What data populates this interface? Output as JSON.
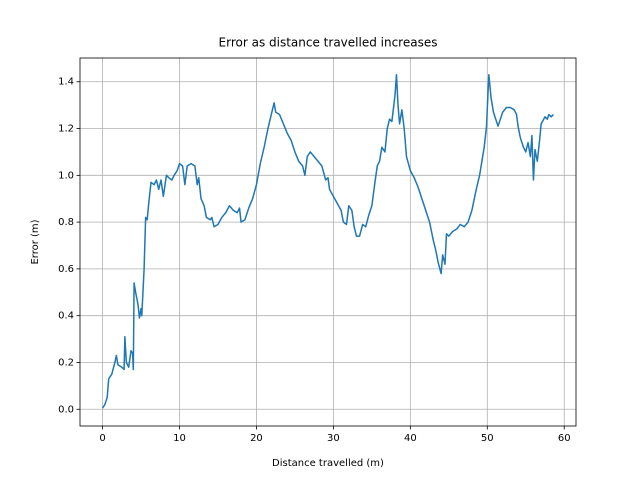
{
  "chart_data": {
    "type": "line",
    "title": "Error as distance travelled increases",
    "x_label": "Distance travelled (m)",
    "y_label": "Error (m)",
    "x": [
      0,
      0.3,
      0.6,
      0.8,
      1.2,
      1.6,
      1.8,
      2,
      2.5,
      2.8,
      2.9,
      3.1,
      3.4,
      3.7,
      3.9,
      4.0,
      4.1,
      4.3,
      4.6,
      4.8,
      5,
      5.1,
      5.4,
      5.6,
      5.8,
      6,
      6.3,
      6.7,
      7,
      7.3,
      7.6,
      7.9,
      8.3,
      8.6,
      9,
      9.3,
      9.7,
      10,
      10.4,
      10.7,
      11,
      11.5,
      12,
      12.3,
      12.5,
      12.8,
      13.2,
      13.5,
      14,
      14.2,
      14.5,
      15,
      15.5,
      16,
      16.5,
      17,
      17.5,
      17.8,
      18,
      18.5,
      19,
      19.5,
      20,
      20.5,
      21,
      21.5,
      22,
      22.3,
      22.5,
      23,
      23.5,
      24,
      24.5,
      25,
      25.5,
      26,
      26.3,
      26.6,
      27,
      27.5,
      28,
      28.5,
      29,
      29.3,
      29.5,
      30,
      30.5,
      31,
      31.3,
      31.7,
      32,
      32.4,
      32.7,
      33,
      33.4,
      33.8,
      34.2,
      34.6,
      35,
      35.4,
      35.7,
      36,
      36.3,
      36.7,
      37,
      37.3,
      37.6,
      38,
      38.2,
      38.4,
      38.6,
      38.9,
      39.2,
      39.5,
      40,
      40.5,
      41,
      41.5,
      42,
      42.5,
      43,
      43.3,
      43.6,
      44,
      44.2,
      44.5,
      44.7,
      45,
      45.5,
      46,
      46.5,
      47,
      47.5,
      48,
      48.5,
      49,
      49.3,
      49.6,
      49.9,
      50.2,
      50.5,
      50.8,
      51,
      51.4,
      51.7,
      52,
      52.5,
      53,
      53.5,
      53.8,
      54,
      54.3,
      54.7,
      55,
      55.3,
      55.6,
      55.8,
      56,
      56.2,
      56.5,
      56.8,
      57,
      57.5,
      57.8,
      58,
      58.3,
      58.6
    ],
    "series": [
      {
        "name": "error",
        "color": "#1f77b4",
        "values": [
          0.005,
          0.02,
          0.05,
          0.13,
          0.15,
          0.2,
          0.23,
          0.19,
          0.18,
          0.17,
          0.31,
          0.2,
          0.18,
          0.25,
          0.24,
          0.17,
          0.54,
          0.5,
          0.45,
          0.39,
          0.43,
          0.4,
          0.6,
          0.82,
          0.81,
          0.88,
          0.97,
          0.96,
          0.98,
          0.94,
          0.98,
          0.91,
          1.0,
          0.99,
          0.98,
          1.0,
          1.02,
          1.05,
          1.04,
          0.96,
          1.04,
          1.05,
          1.04,
          0.96,
          0.99,
          0.9,
          0.87,
          0.82,
          0.81,
          0.82,
          0.78,
          0.79,
          0.82,
          0.84,
          0.87,
          0.85,
          0.84,
          0.86,
          0.8,
          0.81,
          0.86,
          0.9,
          0.96,
          1.05,
          1.12,
          1.2,
          1.27,
          1.31,
          1.27,
          1.26,
          1.22,
          1.18,
          1.15,
          1.1,
          1.06,
          1.04,
          1.0,
          1.08,
          1.1,
          1.08,
          1.06,
          1.04,
          0.98,
          0.99,
          0.94,
          0.91,
          0.88,
          0.85,
          0.8,
          0.79,
          0.87,
          0.85,
          0.78,
          0.74,
          0.74,
          0.79,
          0.78,
          0.83,
          0.87,
          0.97,
          1.04,
          1.06,
          1.12,
          1.1,
          1.2,
          1.24,
          1.23,
          1.34,
          1.43,
          1.3,
          1.22,
          1.28,
          1.2,
          1.08,
          1.02,
          0.99,
          0.95,
          0.9,
          0.85,
          0.8,
          0.72,
          0.68,
          0.63,
          0.58,
          0.66,
          0.62,
          0.75,
          0.74,
          0.76,
          0.77,
          0.79,
          0.78,
          0.8,
          0.85,
          0.93,
          1.0,
          1.06,
          1.12,
          1.21,
          1.43,
          1.33,
          1.27,
          1.25,
          1.21,
          1.24,
          1.27,
          1.29,
          1.29,
          1.28,
          1.26,
          1.21,
          1.16,
          1.12,
          1.1,
          1.14,
          1.08,
          1.17,
          0.98,
          1.11,
          1.06,
          1.15,
          1.22,
          1.25,
          1.24,
          1.26,
          1.25,
          1.26
        ]
      }
    ],
    "xlim": [
      -2.93,
      61.53
    ],
    "xticks": [
      0,
      10,
      20,
      30,
      40,
      50,
      60
    ],
    "ylim": [
      -0.0715,
      1.5015
    ],
    "yticks": [
      {
        "value": 0,
        "label": "0.0"
      },
      {
        "value": 0.2,
        "label": "0.2"
      },
      {
        "value": 0.4,
        "label": "0.4"
      },
      {
        "value": 0.6,
        "label": "0.6"
      },
      {
        "value": 0.8,
        "label": "0.8"
      },
      {
        "value": 1.0,
        "label": "1.0"
      },
      {
        "value": 1.2,
        "label": "1.2"
      },
      {
        "value": 1.4,
        "label": "1.4"
      }
    ],
    "grid": true
  }
}
